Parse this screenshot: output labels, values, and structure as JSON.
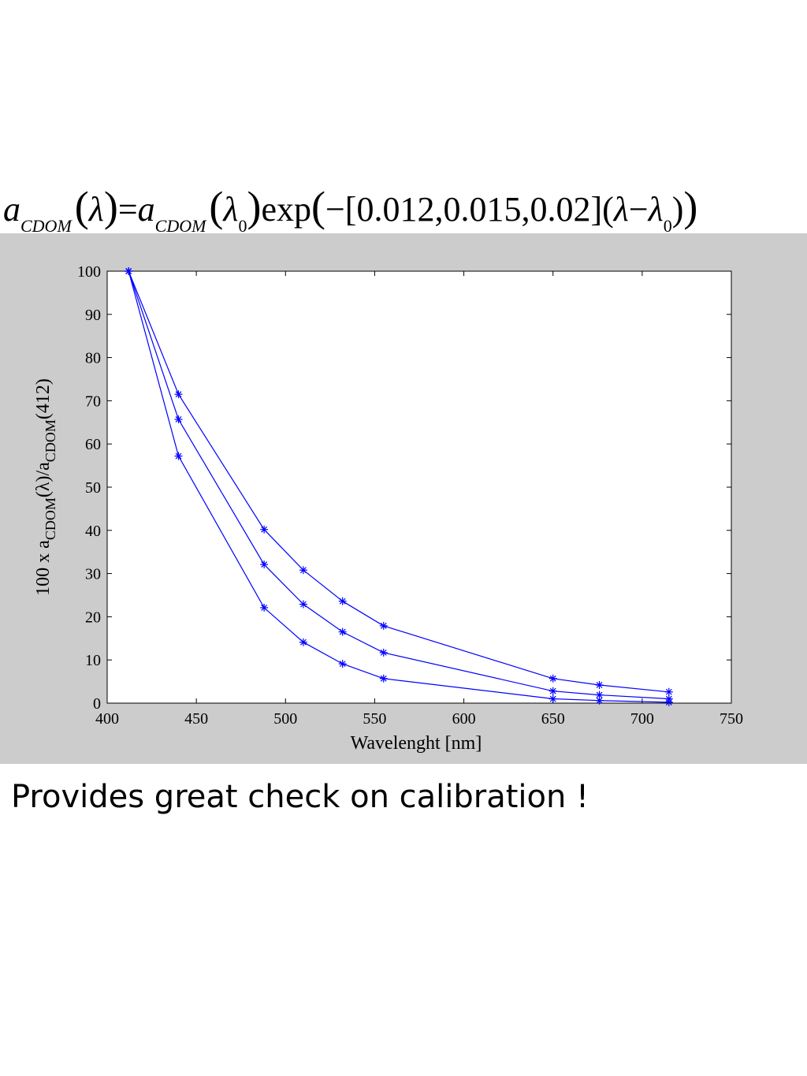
{
  "formula": {
    "a": "a",
    "sub_cdom": "CDOM",
    "lambda": "λ",
    "equals": "=",
    "sub_zero": "0",
    "exp": "exp",
    "minus": "−",
    "coefficients": "[0.012,0.015,0.02]",
    "paren_open": "(",
    "paren_close": ")"
  },
  "caption": "Provides great check on calibration !",
  "colors": {
    "series": "#0000ff",
    "panel_background": "#cccccc",
    "plot_background": "#ffffff"
  },
  "chart_data": {
    "type": "line",
    "marker": "asterisk",
    "xlabel": "Wavelenght [nm]",
    "ylabel_parts": {
      "prefix": "100 x a",
      "sub1": "CDOM",
      "mid": "(λ)/a",
      "sub2": "CDOM",
      "suffix": "(412)"
    },
    "xlim": [
      400,
      750
    ],
    "ylim": [
      0,
      100
    ],
    "xticks": [
      400,
      450,
      500,
      550,
      600,
      650,
      700,
      750
    ],
    "yticks": [
      0,
      10,
      20,
      30,
      40,
      50,
      60,
      70,
      80,
      90,
      100
    ],
    "x": [
      412,
      440,
      488,
      510,
      532,
      555,
      650,
      676,
      715
    ],
    "series": [
      {
        "values": [
          100,
          71.5,
          40.2,
          30.8,
          23.6,
          17.9,
          5.7,
          4.2,
          2.6
        ]
      },
      {
        "values": [
          100,
          65.7,
          32.1,
          22.9,
          16.5,
          11.7,
          2.8,
          1.9,
          1.0
        ]
      },
      {
        "values": [
          100,
          57.2,
          22.1,
          14.1,
          9.1,
          5.7,
          1.0,
          0.6,
          0.2
        ]
      }
    ]
  }
}
